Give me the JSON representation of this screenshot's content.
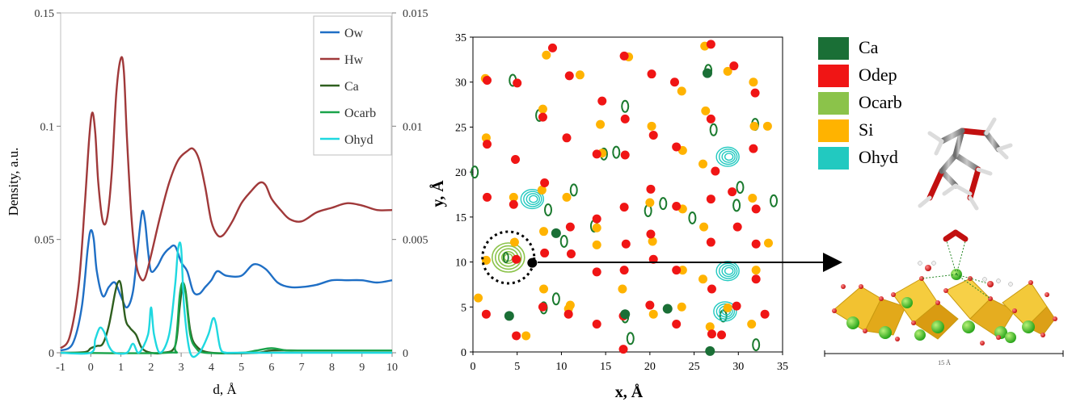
{
  "chart_data": [
    {
      "type": "line",
      "xlabel": "d, Å",
      "ylabel": "Density, a.u.",
      "xlim": [
        -1,
        10
      ],
      "ylim_left": [
        0,
        0.15
      ],
      "ylim_right": [
        0,
        0.015
      ],
      "x_ticks": [
        "-1",
        "0",
        "1",
        "2",
        "3",
        "4",
        "5",
        "6",
        "7",
        "8",
        "9",
        "10"
      ],
      "y_ticks_left": [
        "0",
        "0.05",
        "0.1",
        "0.15"
      ],
      "y_ticks_right": [
        "0",
        "0.005",
        "0.01",
        "0.015"
      ],
      "legend_position": "top-right",
      "grid": false,
      "series": [
        {
          "name": "Ow",
          "color": "#1f6fc5",
          "axis": "left",
          "x": [
            -1,
            -0.6,
            -0.3,
            -0.1,
            0.0,
            0.1,
            0.2,
            0.4,
            0.6,
            0.8,
            1.0,
            1.2,
            1.4,
            1.55,
            1.7,
            1.8,
            1.9,
            2.0,
            2.2,
            2.4,
            2.6,
            2.8,
            3.0,
            3.2,
            3.4,
            3.6,
            3.8,
            4.0,
            4.2,
            4.5,
            5.0,
            5.4,
            5.8,
            6.2,
            6.6,
            7.0,
            7.5,
            8.0,
            8.5,
            9.0,
            9.5,
            10
          ],
          "y": [
            0.001,
            0.004,
            0.02,
            0.046,
            0.054,
            0.05,
            0.036,
            0.025,
            0.029,
            0.031,
            0.025,
            0.02,
            0.027,
            0.045,
            0.062,
            0.058,
            0.045,
            0.036,
            0.038,
            0.043,
            0.046,
            0.047,
            0.04,
            0.036,
            0.027,
            0.026,
            0.029,
            0.032,
            0.036,
            0.034,
            0.034,
            0.039,
            0.037,
            0.031,
            0.029,
            0.029,
            0.03,
            0.032,
            0.032,
            0.032,
            0.031,
            0.032
          ]
        },
        {
          "name": "Hw",
          "color": "#a0393a",
          "axis": "left",
          "x": [
            -1,
            -0.7,
            -0.4,
            -0.2,
            -0.05,
            0.05,
            0.15,
            0.25,
            0.4,
            0.55,
            0.7,
            0.85,
            1.0,
            1.1,
            1.2,
            1.35,
            1.5,
            1.65,
            1.8,
            2.0,
            2.3,
            2.6,
            2.9,
            3.2,
            3.4,
            3.6,
            3.8,
            4.0,
            4.2,
            4.4,
            4.7,
            5.0,
            5.3,
            5.6,
            5.8,
            6.0,
            6.3,
            6.6,
            7.0,
            7.5,
            8.0,
            8.5,
            9.0,
            9.5,
            10
          ],
          "y": [
            0.002,
            0.007,
            0.03,
            0.065,
            0.095,
            0.106,
            0.097,
            0.075,
            0.058,
            0.06,
            0.08,
            0.115,
            0.13,
            0.124,
            0.095,
            0.06,
            0.04,
            0.033,
            0.033,
            0.043,
            0.06,
            0.075,
            0.085,
            0.089,
            0.09,
            0.085,
            0.073,
            0.058,
            0.052,
            0.052,
            0.058,
            0.066,
            0.071,
            0.075,
            0.074,
            0.068,
            0.063,
            0.059,
            0.058,
            0.062,
            0.064,
            0.066,
            0.065,
            0.063,
            0.063
          ]
        },
        {
          "name": "Ca",
          "color": "#2f5f1f",
          "axis": "left",
          "x": [
            -1,
            -0.2,
            0.0,
            0.2,
            0.4,
            0.6,
            0.8,
            0.9,
            1.0,
            1.15,
            1.3,
            1.5,
            1.7,
            2.0,
            2.4,
            2.8,
            2.95,
            3.05,
            3.15,
            3.3,
            3.5,
            4.0,
            5.5,
            6.0,
            7.0,
            8.0,
            9.0,
            10
          ],
          "y": [
            0,
            0.0003,
            0.002,
            0.003,
            0.004,
            0.012,
            0.026,
            0.031,
            0.03,
            0.015,
            0.011,
            0.008,
            0.002,
            0,
            0,
            0.003,
            0.02,
            0.03,
            0.027,
            0.01,
            0.003,
            0,
            0,
            0.001,
            0.001,
            0.001,
            0.001,
            0.001
          ]
        },
        {
          "name": "Ocarb",
          "color": "#1aa34a",
          "axis": "right",
          "x": [
            -1,
            2.5,
            2.8,
            2.95,
            3.05,
            3.15,
            3.3,
            3.5,
            3.8,
            5.0,
            5.5,
            6.0,
            6.5,
            7.0,
            8.0,
            9.0,
            10
          ],
          "y": [
            0,
            0,
            0.0003,
            0.0025,
            0.0031,
            0.0026,
            0.0008,
            0.0002,
            0,
            0,
            0.0001,
            0.0002,
            0.0001,
            0.0001,
            0.0001,
            0.0001,
            0.0001
          ]
        },
        {
          "name": "Ohyd",
          "color": "#1fd8e0",
          "axis": "right",
          "x": [
            -1,
            0.0,
            0.15,
            0.3,
            0.45,
            0.6,
            0.8,
            1.2,
            1.4,
            1.6,
            1.9,
            2.0,
            2.1,
            2.3,
            2.6,
            2.8,
            2.9,
            3.0,
            3.1,
            3.3,
            3.6,
            3.9,
            4.05,
            4.15,
            4.3,
            4.5,
            5.0,
            10
          ],
          "y": [
            0,
            0,
            0.0006,
            0.0011,
            0.0009,
            0.0003,
            0,
            0,
            0.0004,
            0,
            0.0008,
            0.002,
            0.0008,
            0,
            0.0008,
            0.003,
            0.0046,
            0.0046,
            0.002,
            0,
            0,
            0.0008,
            0.0015,
            0.0013,
            0.0002,
            0,
            0,
            0
          ]
        }
      ]
    },
    {
      "type": "scatter",
      "xlabel": "x, Å",
      "ylabel": "y, Å",
      "xlim": [
        0,
        35
      ],
      "ylim": [
        0,
        35
      ],
      "x_ticks": [
        "0",
        "5",
        "10",
        "15",
        "20",
        "25",
        "30",
        "35"
      ],
      "y_ticks": [
        "0",
        "5",
        "10",
        "15",
        "20",
        "25",
        "30",
        "35"
      ],
      "legend_position": "right",
      "legend": [
        {
          "name": "Ca",
          "color": "#1a6f36"
        },
        {
          "name": "Odep",
          "color": "#f01515"
        },
        {
          "name": "Ocarb",
          "color": "#8bc34a"
        },
        {
          "name": "Si",
          "color": "#ffb300"
        },
        {
          "name": "Ohyd",
          "color": "#22c9c0"
        }
      ],
      "points": {
        "Odep": [
          [
            1.6,
            30.2
          ],
          [
            5.0,
            29.9
          ],
          [
            9.0,
            33.8
          ],
          [
            10.9,
            30.7
          ],
          [
            14.0,
            22.0
          ],
          [
            14.6,
            27.9
          ],
          [
            17.1,
            32.9
          ],
          [
            17.2,
            25.9
          ],
          [
            17.2,
            21.9
          ],
          [
            20.2,
            30.9
          ],
          [
            20.4,
            24.1
          ],
          [
            22.8,
            30.0
          ],
          [
            23.0,
            22.8
          ],
          [
            26.9,
            34.2
          ],
          [
            26.9,
            25.9
          ],
          [
            27.4,
            20.1
          ],
          [
            29.5,
            31.8
          ],
          [
            31.9,
            28.8
          ],
          [
            31.7,
            22.6
          ],
          [
            1.6,
            23.1
          ],
          [
            4.8,
            21.4
          ],
          [
            7.9,
            26.1
          ],
          [
            10.6,
            23.8
          ],
          [
            8.1,
            18.8
          ],
          [
            1.6,
            17.2
          ],
          [
            4.6,
            16.4
          ],
          [
            11.0,
            13.9
          ],
          [
            14.0,
            14.8
          ],
          [
            17.1,
            16.1
          ],
          [
            17.3,
            12.0
          ],
          [
            20.1,
            18.1
          ],
          [
            20.1,
            13.1
          ],
          [
            23.0,
            16.2
          ],
          [
            26.9,
            17.0
          ],
          [
            26.9,
            12.2
          ],
          [
            29.3,
            17.8
          ],
          [
            32.0,
            15.9
          ],
          [
            32.0,
            12.0
          ],
          [
            29.9,
            13.9
          ],
          [
            4.9,
            10.3
          ],
          [
            8.1,
            11.0
          ],
          [
            11.1,
            10.9
          ],
          [
            14.0,
            8.9
          ],
          [
            17.1,
            9.1
          ],
          [
            20.4,
            10.3
          ],
          [
            23.0,
            9.1
          ],
          [
            27.0,
            7.0
          ],
          [
            29.8,
            5.1
          ],
          [
            32.0,
            8.1
          ],
          [
            1.5,
            4.2
          ],
          [
            7.9,
            5.0
          ],
          [
            10.8,
            4.2
          ],
          [
            14.0,
            3.1
          ],
          [
            17.0,
            4.0
          ],
          [
            20.0,
            5.2
          ],
          [
            23.0,
            3.1
          ],
          [
            27.0,
            2.0
          ],
          [
            33.0,
            4.2
          ],
          [
            4.9,
            1.8
          ],
          [
            17.0,
            0.3
          ],
          [
            28.1,
            1.9
          ]
        ],
        "Si": [
          [
            1.4,
            30.4
          ],
          [
            8.3,
            33.0
          ],
          [
            12.1,
            30.8
          ],
          [
            14.6,
            22.1
          ],
          [
            17.6,
            32.8
          ],
          [
            20.2,
            25.1
          ],
          [
            23.7,
            22.4
          ],
          [
            23.6,
            29.0
          ],
          [
            26.2,
            34.0
          ],
          [
            26.3,
            26.8
          ],
          [
            28.8,
            31.2
          ],
          [
            31.7,
            30.0
          ],
          [
            31.8,
            25.1
          ],
          [
            1.5,
            23.8
          ],
          [
            7.9,
            27.0
          ],
          [
            14.4,
            25.3
          ],
          [
            26.0,
            20.9
          ],
          [
            33.3,
            25.1
          ],
          [
            4.6,
            17.2
          ],
          [
            7.8,
            18.0
          ],
          [
            10.6,
            17.2
          ],
          [
            14.0,
            13.8
          ],
          [
            20.0,
            16.6
          ],
          [
            23.7,
            15.9
          ],
          [
            26.1,
            13.9
          ],
          [
            31.6,
            17.1
          ],
          [
            33.4,
            12.1
          ],
          [
            4.7,
            12.2
          ],
          [
            1.5,
            10.2
          ],
          [
            8.0,
            13.4
          ],
          [
            14.0,
            11.9
          ],
          [
            20.3,
            12.3
          ],
          [
            23.7,
            9.1
          ],
          [
            26.0,
            8.1
          ],
          [
            32.0,
            9.1
          ],
          [
            8.0,
            7.0
          ],
          [
            11.0,
            5.2
          ],
          [
            16.9,
            7.0
          ],
          [
            23.6,
            5.0
          ],
          [
            26.8,
            2.8
          ],
          [
            31.5,
            3.1
          ],
          [
            0.6,
            6.0
          ],
          [
            6.0,
            1.8
          ],
          [
            10.8,
            4.8
          ],
          [
            20.4,
            4.2
          ],
          [
            28.8,
            4.9
          ]
        ],
        "Ca": [
          [
            26.5,
            31.0
          ],
          [
            4.1,
            4.0
          ],
          [
            9.4,
            13.2
          ],
          [
            17.2,
            4.2
          ],
          [
            22.0,
            4.8
          ],
          [
            26.8,
            0.1
          ]
        ]
      },
      "contours": {
        "Ocarb": [
          [
            4.5,
            30.2
          ],
          [
            7.5,
            26.3
          ],
          [
            8.5,
            15.8
          ],
          [
            11.4,
            18.0
          ],
          [
            13.7,
            14.0
          ],
          [
            14.8,
            22.0
          ],
          [
            16.2,
            22.2
          ],
          [
            17.2,
            27.3
          ],
          [
            19.8,
            15.7
          ],
          [
            21.5,
            16.5
          ],
          [
            24.8,
            14.9
          ],
          [
            26.6,
            31.3
          ],
          [
            27.2,
            24.7
          ],
          [
            30.2,
            18.3
          ],
          [
            31.9,
            25.3
          ],
          [
            10.3,
            12.3
          ],
          [
            8.0,
            4.9
          ],
          [
            9.4,
            5.9
          ],
          [
            17.2,
            3.9
          ],
          [
            32.0,
            0.8
          ],
          [
            34.0,
            16.8
          ],
          [
            0.2,
            20.0
          ],
          [
            28.3,
            4.0
          ],
          [
            29.8,
            16.3
          ],
          [
            17.8,
            1.5
          ]
        ],
        "Ohyd": [
          [
            6.7,
            17.0
          ],
          [
            28.8,
            21.7
          ],
          [
            28.8,
            9.0
          ],
          [
            28.5,
            4.5
          ]
        ],
        "Ocarb_big": [
          [
            4.0,
            10.5
          ]
        ]
      },
      "annotation_marker": {
        "x": 6.7,
        "y": 9.9
      }
    }
  ],
  "image3": {
    "scale_label": "15 Å"
  }
}
